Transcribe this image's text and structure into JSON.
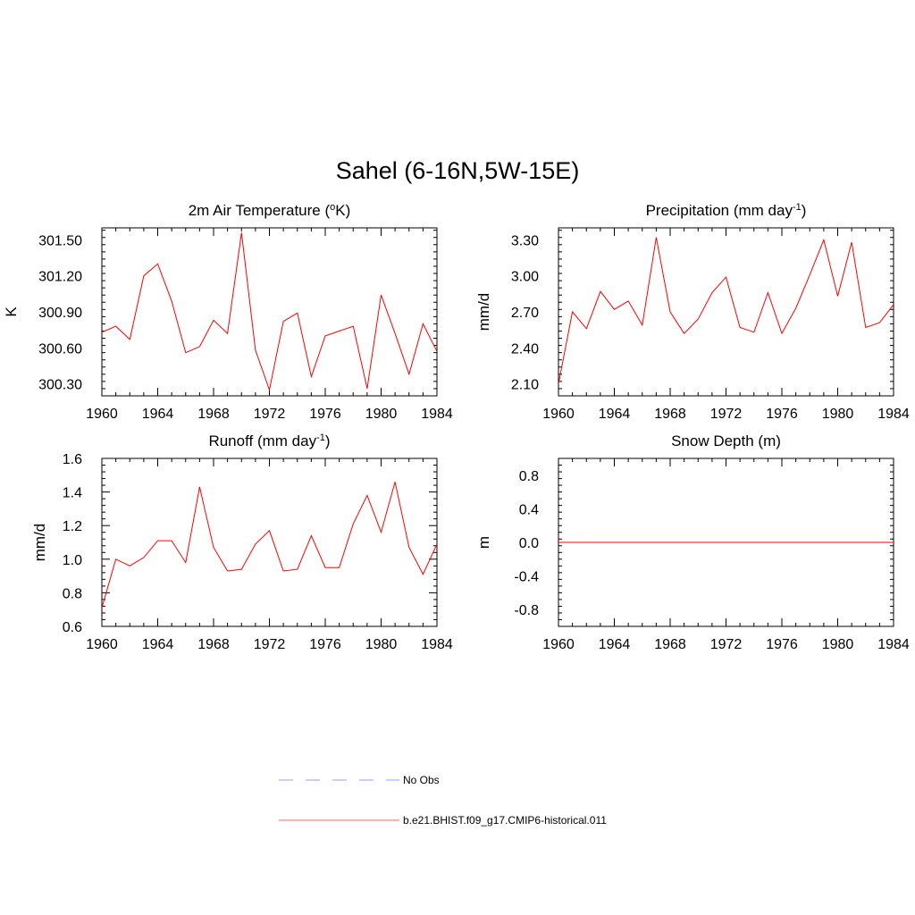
{
  "title": "Sahel (6-16N,5W-15E)",
  "legend": [
    {
      "label": "No Obs",
      "color": "#9999ff",
      "style": "dashed"
    },
    {
      "label": "b.e21.BHIST.f09_g17.CMIP6-historical.011",
      "color": "#ff6666",
      "style": "solid"
    }
  ],
  "chart_data": [
    {
      "type": "line",
      "title": "2m Air Temperature (°K)",
      "title_parts": [
        "2m Air Temperature (",
        "o",
        "K)"
      ],
      "title_sup_index": 1,
      "ylabel": "K",
      "xlim": [
        1960,
        1984
      ],
      "ylim": [
        300.2,
        301.6
      ],
      "xticks": [
        1960,
        1964,
        1968,
        1972,
        1976,
        1980,
        1984
      ],
      "xtick_labels": [
        "1960",
        "1964",
        "1968",
        "1972",
        "1976",
        "1980",
        "1984"
      ],
      "yticks": [
        300.3,
        300.6,
        300.9,
        301.2,
        301.5
      ],
      "ytick_labels": [
        "300.30",
        "300.60",
        "300.90",
        "301.20",
        "301.50"
      ],
      "x": [
        1960,
        1961,
        1962,
        1963,
        1964,
        1965,
        1966,
        1967,
        1968,
        1969,
        1970,
        1971,
        1972,
        1973,
        1974,
        1975,
        1976,
        1977,
        1978,
        1979,
        1980,
        1981,
        1982,
        1983,
        1984
      ],
      "series": [
        {
          "name": "b.e21.BHIST.f09_g17.CMIP6-historical.011",
          "values": [
            300.73,
            300.78,
            300.67,
            301.2,
            301.3,
            300.99,
            300.56,
            300.61,
            300.83,
            300.72,
            301.56,
            300.58,
            300.25,
            300.82,
            300.89,
            300.36,
            300.7,
            300.74,
            300.78,
            300.26,
            301.04,
            300.72,
            300.38,
            300.8,
            300.57
          ]
        }
      ]
    },
    {
      "type": "line",
      "title": "Precipitation (mm day-1)",
      "title_parts": [
        "Precipitation (mm day",
        "-1",
        ")"
      ],
      "title_sup_index": 1,
      "ylabel": "mm/d",
      "xlim": [
        1960,
        1984
      ],
      "ylim": [
        2.0,
        3.4
      ],
      "xticks": [
        1960,
        1964,
        1968,
        1972,
        1976,
        1980,
        1984
      ],
      "xtick_labels": [
        "1960",
        "1964",
        "1968",
        "1972",
        "1976",
        "1980",
        "1984"
      ],
      "yticks": [
        2.1,
        2.4,
        2.7,
        3.0,
        3.3
      ],
      "ytick_labels": [
        "2.10",
        "2.40",
        "2.70",
        "3.00",
        "3.30"
      ],
      "x": [
        1960,
        1961,
        1962,
        1963,
        1964,
        1965,
        1966,
        1967,
        1968,
        1969,
        1970,
        1971,
        1972,
        1973,
        1974,
        1975,
        1976,
        1977,
        1978,
        1979,
        1980,
        1981,
        1982,
        1983,
        1984
      ],
      "series": [
        {
          "name": "b.e21.BHIST.f09_g17.CMIP6-historical.011",
          "values": [
            2.1,
            2.7,
            2.56,
            2.87,
            2.72,
            2.79,
            2.59,
            3.32,
            2.7,
            2.52,
            2.64,
            2.86,
            2.99,
            2.57,
            2.53,
            2.86,
            2.52,
            2.73,
            3.01,
            3.3,
            2.83,
            3.28,
            2.57,
            2.61,
            2.76
          ]
        }
      ]
    },
    {
      "type": "line",
      "title": "Runoff (mm day-1)",
      "title_parts": [
        "Runoff (mm day",
        "-1",
        ")"
      ],
      "title_sup_index": 1,
      "ylabel": "mm/d",
      "xlim": [
        1960,
        1984
      ],
      "ylim": [
        0.6,
        1.6
      ],
      "xticks": [
        1960,
        1964,
        1968,
        1972,
        1976,
        1980,
        1984
      ],
      "xtick_labels": [
        "1960",
        "1964",
        "1968",
        "1972",
        "1976",
        "1980",
        "1984"
      ],
      "yticks": [
        0.6,
        0.8,
        1.0,
        1.2,
        1.4,
        1.6
      ],
      "ytick_labels": [
        "0.6",
        "0.8",
        "1.0",
        "1.2",
        "1.4",
        "1.6"
      ],
      "x": [
        1960,
        1961,
        1962,
        1963,
        1964,
        1965,
        1966,
        1967,
        1968,
        1969,
        1970,
        1971,
        1972,
        1973,
        1974,
        1975,
        1976,
        1977,
        1978,
        1979,
        1980,
        1981,
        1982,
        1983,
        1984
      ],
      "series": [
        {
          "name": "b.e21.BHIST.f09_g17.CMIP6-historical.011",
          "values": [
            0.71,
            1.0,
            0.96,
            1.01,
            1.11,
            1.11,
            0.98,
            1.43,
            1.07,
            0.93,
            0.94,
            1.09,
            1.17,
            0.93,
            0.94,
            1.14,
            0.95,
            0.95,
            1.21,
            1.38,
            1.16,
            1.46,
            1.07,
            0.91,
            1.09
          ]
        }
      ]
    },
    {
      "type": "line",
      "title": "Snow Depth (m)",
      "title_parts": [
        "Snow Depth (m)"
      ],
      "title_sup_index": -1,
      "ylabel": "m",
      "xlim": [
        1960,
        1984
      ],
      "ylim": [
        -1.0,
        1.0
      ],
      "xticks": [
        1960,
        1964,
        1968,
        1972,
        1976,
        1980,
        1984
      ],
      "xtick_labels": [
        "1960",
        "1964",
        "1968",
        "1972",
        "1976",
        "1980",
        "1984"
      ],
      "yticks": [
        -0.8,
        -0.4,
        0.0,
        0.4,
        0.8
      ],
      "ytick_labels": [
        "-0.8",
        "-0.4",
        "0.0",
        "0.4",
        "0.8"
      ],
      "x": [
        1960,
        1961,
        1962,
        1963,
        1964,
        1965,
        1966,
        1967,
        1968,
        1969,
        1970,
        1971,
        1972,
        1973,
        1974,
        1975,
        1976,
        1977,
        1978,
        1979,
        1980,
        1981,
        1982,
        1983,
        1984
      ],
      "series": [
        {
          "name": "b.e21.BHIST.f09_g17.CMIP6-historical.011",
          "values": [
            0,
            0,
            0,
            0,
            0,
            0,
            0,
            0,
            0,
            0,
            0,
            0,
            0,
            0,
            0,
            0,
            0,
            0,
            0,
            0,
            0,
            0,
            0,
            0,
            0
          ]
        }
      ]
    }
  ]
}
